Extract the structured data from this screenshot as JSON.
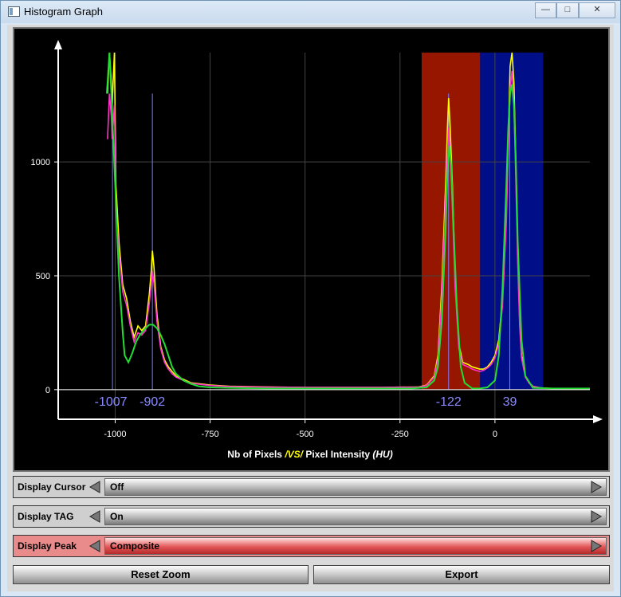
{
  "window": {
    "title": "Histogram Graph",
    "minimize_glyph": "—",
    "maximize_glyph": "□",
    "close_glyph": "✕"
  },
  "chart_data": {
    "type": "line",
    "xlabel_prefix": "Nb of Pixels",
    "xlabel_vs": "/VS/",
    "xlabel_suffix": "Pixel Intensity",
    "xlabel_unit": "(HU)",
    "xlim": [
      -1150,
      250
    ],
    "ylim": [
      -130,
      1480
    ],
    "x_ticks": [
      -1000,
      -750,
      -500,
      -250,
      0
    ],
    "y_ticks": [
      0,
      500,
      1000
    ],
    "grid": true,
    "regions": [
      {
        "name": "red-region",
        "x_start": -193,
        "x_end": -39,
        "color": "#b01a00"
      },
      {
        "name": "blue-region",
        "x_start": -39,
        "x_end": 127,
        "color": "#0010a0"
      }
    ],
    "peak_markers": [
      {
        "x": -1007,
        "label": "-1007"
      },
      {
        "x": -902,
        "label": "-902"
      },
      {
        "x": -122,
        "label": "-122"
      },
      {
        "x": 39,
        "label": "39"
      }
    ],
    "series": [
      {
        "color": "#ffff00",
        "x": [
          -1020,
          -1015,
          -1010,
          -1008,
          -1002,
          -998,
          -990,
          -980,
          -970,
          -960,
          -950,
          -940,
          -930,
          -920,
          -910,
          -905,
          -902,
          -898,
          -890,
          -880,
          -870,
          -860,
          -850,
          -840,
          -820,
          -800,
          -750,
          -700,
          -600,
          -500,
          -400,
          -300,
          -200,
          -180,
          -160,
          -150,
          -140,
          -130,
          -125,
          -122,
          -118,
          -112,
          -105,
          -95,
          -85,
          -70,
          -60,
          -50,
          -40,
          -30,
          -20,
          -10,
          0,
          10,
          20,
          30,
          35,
          40,
          45,
          50,
          55,
          60,
          65,
          70,
          80,
          90,
          100,
          120,
          150,
          200,
          250
        ],
        "y": [
          1300,
          1480,
          1350,
          1250,
          1480,
          900,
          650,
          460,
          400,
          300,
          230,
          280,
          260,
          280,
          420,
          520,
          610,
          540,
          330,
          190,
          130,
          100,
          80,
          60,
          45,
          30,
          20,
          15,
          12,
          10,
          10,
          10,
          12,
          20,
          60,
          150,
          450,
          900,
          1150,
          1280,
          1150,
          900,
          500,
          200,
          120,
          110,
          100,
          95,
          90,
          90,
          100,
          120,
          150,
          220,
          400,
          800,
          1100,
          1420,
          1480,
          1350,
          1000,
          600,
          300,
          150,
          60,
          30,
          15,
          8,
          5,
          5,
          5
        ]
      },
      {
        "color": "#ff33cc",
        "x": [
          -1020,
          -1015,
          -1010,
          -1008,
          -1002,
          -998,
          -990,
          -980,
          -970,
          -960,
          -950,
          -940,
          -930,
          -920,
          -910,
          -905,
          -902,
          -898,
          -890,
          -880,
          -870,
          -860,
          -850,
          -840,
          -820,
          -800,
          -750,
          -700,
          -600,
          -500,
          -400,
          -300,
          -200,
          -180,
          -160,
          -150,
          -140,
          -130,
          -125,
          -122,
          -118,
          -112,
          -105,
          -95,
          -85,
          -70,
          -60,
          -50,
          -40,
          -30,
          -20,
          -10,
          0,
          10,
          20,
          30,
          35,
          40,
          45,
          50,
          55,
          60,
          65,
          70,
          80,
          90,
          100,
          120,
          150,
          200,
          250
        ],
        "y": [
          1100,
          1300,
          1200,
          1100,
          1250,
          800,
          600,
          430,
          370,
          280,
          210,
          250,
          240,
          260,
          380,
          460,
          520,
          470,
          300,
          180,
          120,
          90,
          70,
          55,
          40,
          28,
          18,
          14,
          11,
          10,
          10,
          10,
          11,
          18,
          55,
          130,
          400,
          820,
          1030,
          1150,
          1030,
          800,
          450,
          180,
          110,
          100,
          90,
          85,
          80,
          85,
          95,
          110,
          140,
          200,
          370,
          740,
          1050,
          1320,
          1400,
          1250,
          920,
          550,
          280,
          140,
          55,
          28,
          14,
          7,
          5,
          5,
          5
        ]
      },
      {
        "color": "#22dd33",
        "x": [
          -1022,
          -1015,
          -1010,
          -1005,
          -1000,
          -995,
          -990,
          -980,
          -975,
          -965,
          -955,
          -945,
          -935,
          -920,
          -910,
          -900,
          -890,
          -880,
          -870,
          -860,
          -850,
          -840,
          -820,
          -800,
          -780,
          -750,
          -700,
          -600,
          -500,
          -400,
          -300,
          -220,
          -180,
          -160,
          -150,
          -140,
          -130,
          -125,
          -120,
          -115,
          -110,
          -100,
          -90,
          -80,
          -60,
          -40,
          -20,
          0,
          10,
          20,
          30,
          35,
          40,
          45,
          50,
          55,
          60,
          70,
          80,
          100,
          150,
          250
        ],
        "y": [
          1300,
          1480,
          1300,
          1100,
          900,
          700,
          500,
          250,
          150,
          120,
          160,
          210,
          240,
          270,
          285,
          285,
          270,
          240,
          200,
          150,
          100,
          70,
          40,
          25,
          15,
          10,
          8,
          5,
          5,
          5,
          5,
          5,
          10,
          40,
          100,
          300,
          700,
          950,
          1070,
          980,
          750,
          350,
          100,
          30,
          5,
          5,
          10,
          40,
          150,
          450,
          900,
          1150,
          1300,
          1340,
          1250,
          1000,
          650,
          220,
          60,
          8,
          5,
          5
        ]
      }
    ]
  },
  "controls": {
    "display_cursor": {
      "label": "Display Cursor",
      "value": "Off"
    },
    "display_tag": {
      "label": "Display TAG",
      "value": "On"
    },
    "display_peak": {
      "label": "Display Peak",
      "value": "Composite"
    }
  },
  "buttons": {
    "reset_zoom": "Reset Zoom",
    "export": "Export"
  }
}
